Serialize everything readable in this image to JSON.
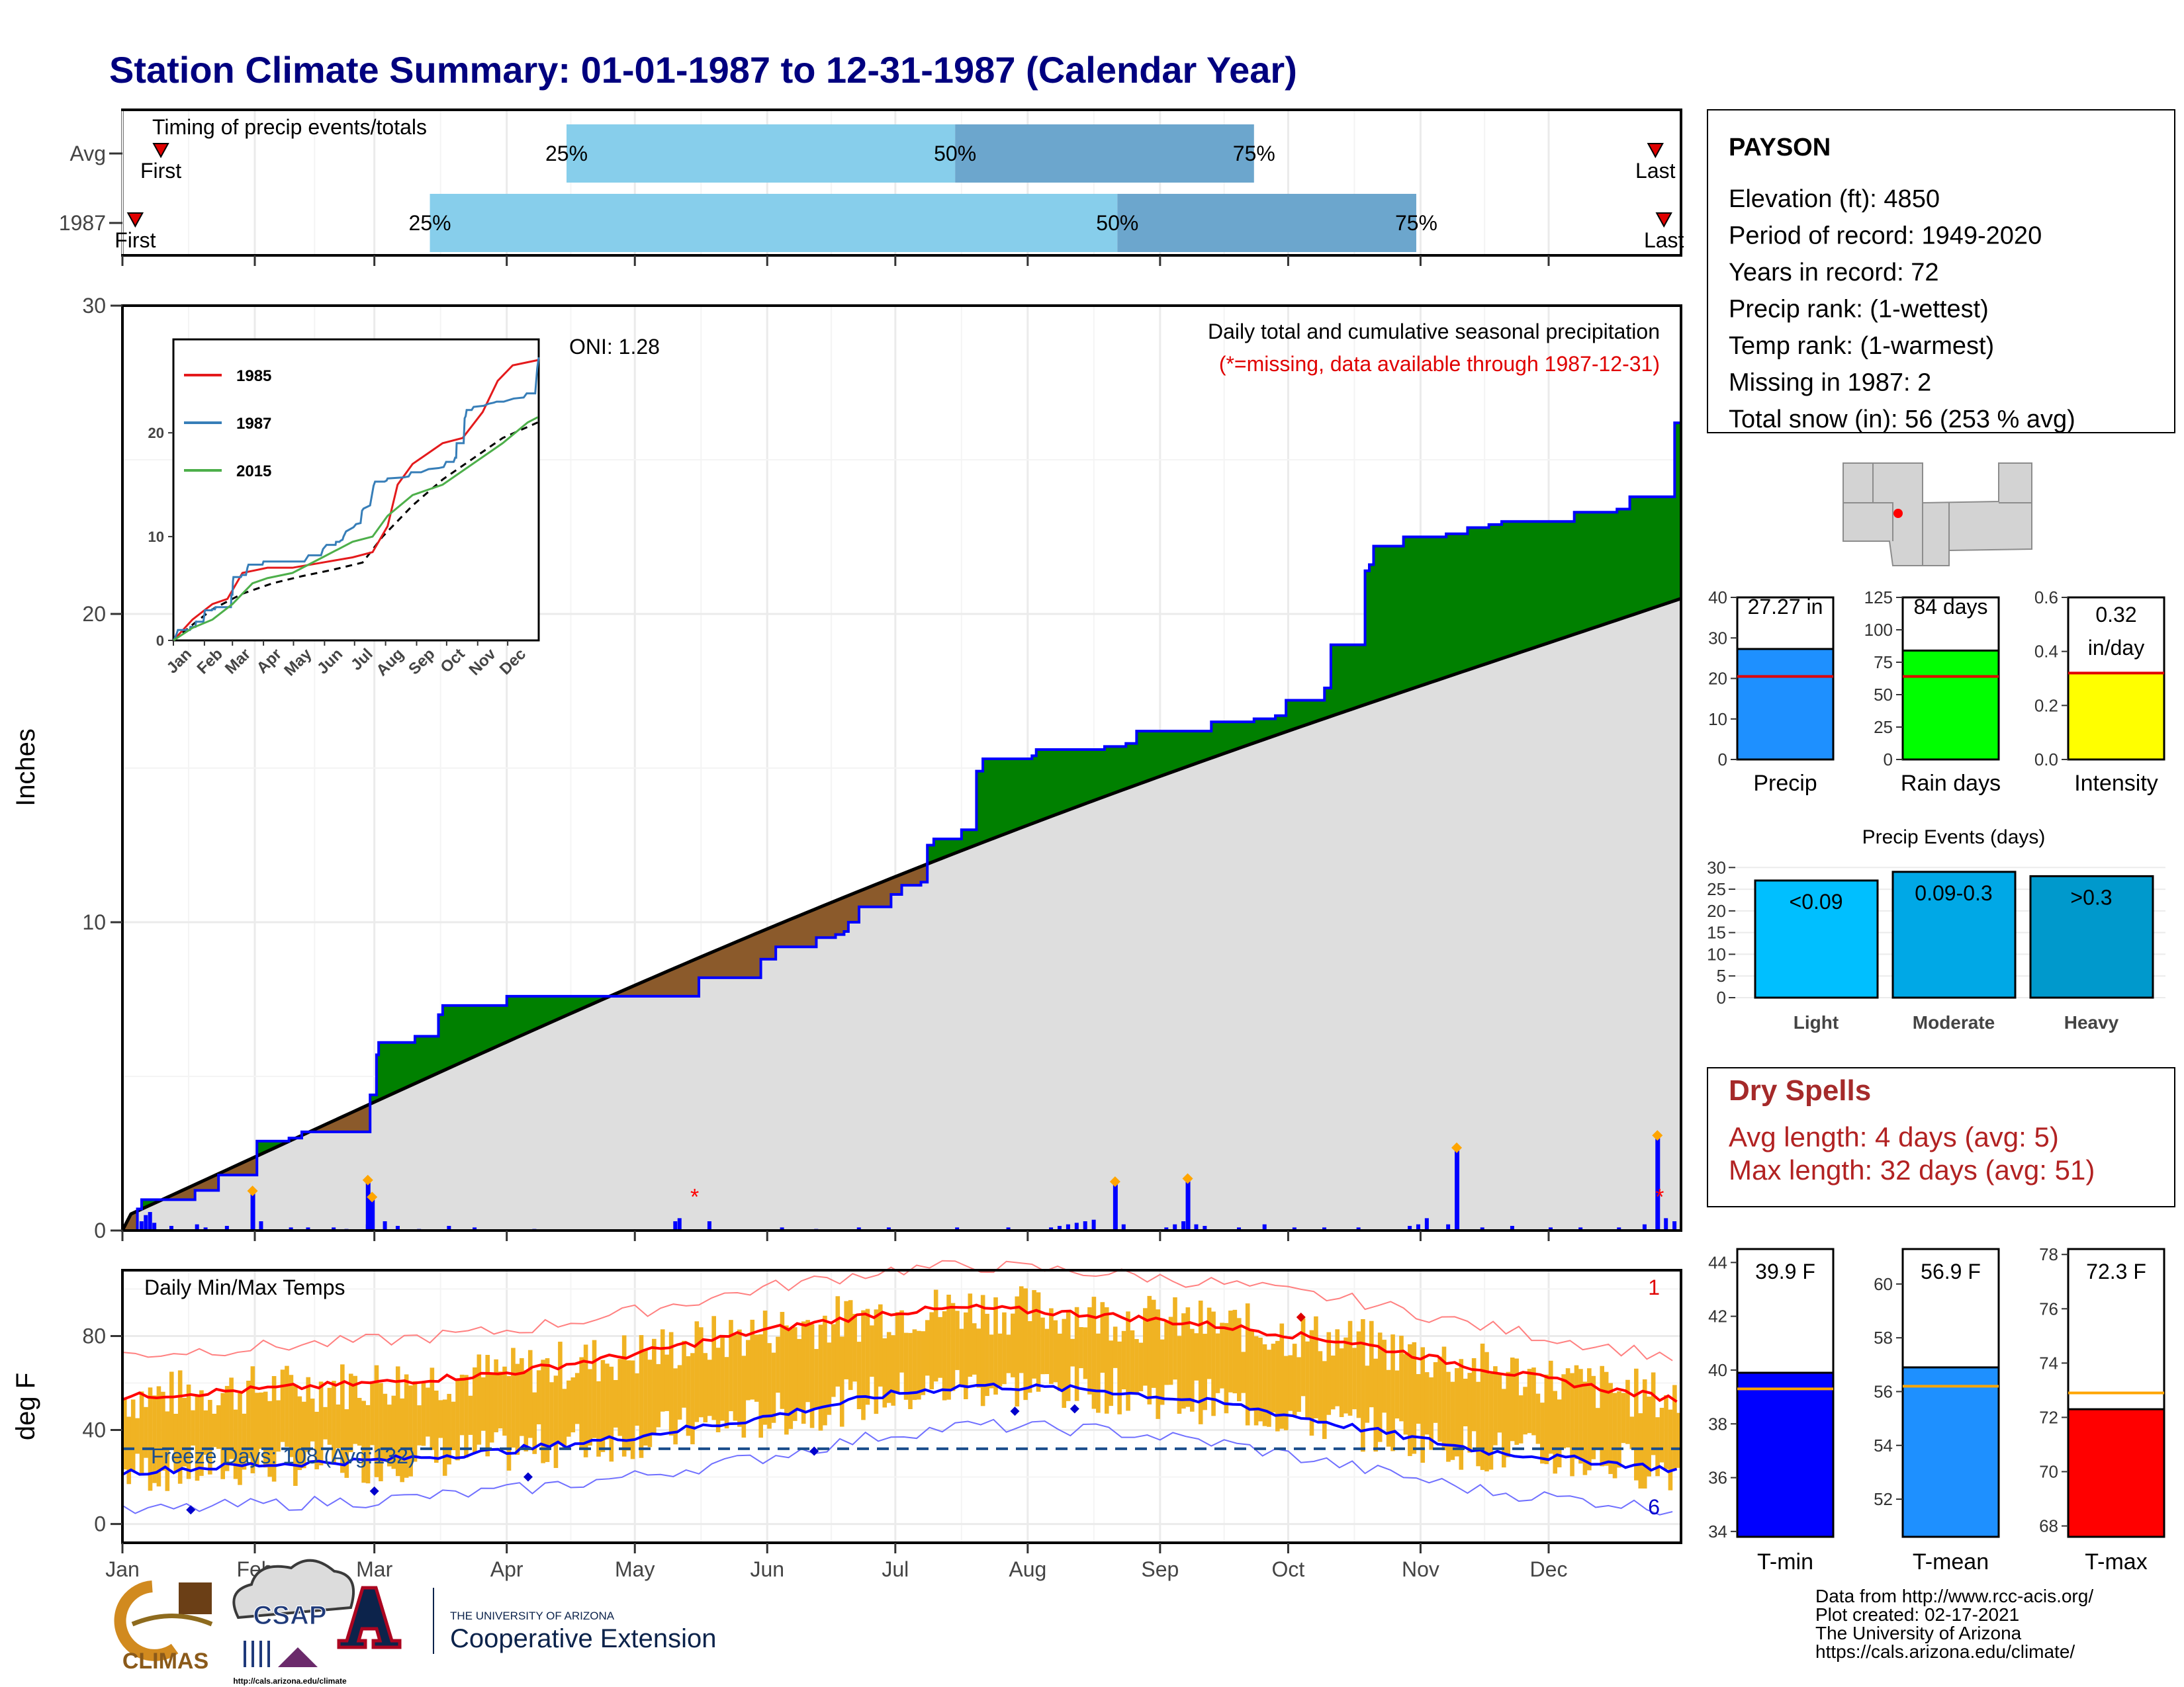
{
  "title": "Station Climate Summary: 01-01-1987 to 12-31-1987 (Calendar Year)",
  "timing": {
    "label": "Timing of precip events/totals",
    "rows": [
      {
        "label": "Avg",
        "first_label": "First",
        "last_label": "Last",
        "p25": "25%",
        "p50": "50%",
        "p75": "75%",
        "first_day": 10,
        "last_day": 360,
        "d25": 105,
        "d50": 196,
        "d75": 266
      },
      {
        "label": "1987",
        "first_label": "First",
        "last_label": "Last",
        "p25": "25%",
        "p50": "50%",
        "p75": "75%",
        "first_day": 4,
        "last_day": 362,
        "d25": 73,
        "d50": 234,
        "d75": 304
      }
    ]
  },
  "precip_panel": {
    "ylabel": "Inches",
    "yticks": [
      "0",
      "10",
      "20",
      "30"
    ],
    "title": "Daily total and cumulative seasonal precipitation",
    "subtitle": "(*=missing, data available through 1987-12-31)",
    "oni": "ONI: 1.28"
  },
  "inset": {
    "legend": [
      "1985",
      "1987",
      "2015"
    ],
    "legend_colors": [
      "#e41a1c",
      "#377eb8",
      "#4daf4a"
    ],
    "yticks": [
      "0",
      "10",
      "20"
    ],
    "xticks": [
      "Jan",
      "Feb",
      "Mar",
      "Apr",
      "May",
      "Jun",
      "Jul",
      "Aug",
      "Sep",
      "Oct",
      "Nov",
      "Dec"
    ]
  },
  "station": {
    "name": "PAYSON",
    "lines": [
      "Elevation (ft): 4850",
      "Period of record: 1949-2020",
      "Years in record: 72",
      "Precip rank:  (1-wettest)",
      "Temp rank:  (1-warmest)",
      "Missing in 1987: 2",
      "Total snow (in): 56 (253 % avg)"
    ]
  },
  "summary_bars": [
    {
      "label": "27.27 in",
      "xlabel": "Precip",
      "value": 27.27,
      "avg": 20.5,
      "ymax": 40,
      "yticks": [
        "0",
        "10",
        "20",
        "30",
        "40"
      ],
      "color": "#1e90ff"
    },
    {
      "label": "84 days",
      "xlabel": "Rain days",
      "value": 84,
      "avg": 64,
      "ymax": 125,
      "yticks": [
        "0",
        "25",
        "50",
        "75",
        "100",
        "125"
      ],
      "color": "#00ff00"
    },
    {
      "label": "0.32 in/day",
      "label1": "0.32",
      "label2": "in/day",
      "xlabel": "Intensity",
      "value": 0.32,
      "avg": 0.32,
      "ymax": 0.6,
      "yticks": [
        "0.0",
        "0.2",
        "0.4",
        "0.6"
      ],
      "color": "#ffff00"
    }
  ],
  "events": {
    "title": "Precip Events (days)",
    "yticks": [
      "0",
      "5",
      "10",
      "15",
      "20",
      "25",
      "30"
    ],
    "bars": [
      {
        "label": "<0.09",
        "xlabel": "Light",
        "value": 27,
        "color": "#00bfff"
      },
      {
        "label": "0.09-0.3",
        "xlabel": "Moderate",
        "value": 29,
        "color": "#00a8e6"
      },
      {
        "label": ">0.3",
        "xlabel": "Heavy",
        "value": 28,
        "color": "#0099cc"
      }
    ]
  },
  "dry_spells": {
    "title": "Dry Spells",
    "line1": "Avg length: 4 days (avg: 5)",
    "line2": "Max length: 32 days (avg: 51)"
  },
  "temp_panel": {
    "ylabel": "deg F",
    "title": "Daily Min/Max Temps",
    "freeze": "Freeze Days: 108 (Avg:132)",
    "count_top": "1",
    "count_bottom": "6",
    "yticks": [
      "0",
      "40",
      "80"
    ],
    "freeze_line": 32
  },
  "temp_bars": [
    {
      "label": "39.9 F",
      "xlabel": "T-min",
      "value": 39.9,
      "avg": 39.3,
      "ymin": 33.8,
      "ymax": 44.5,
      "yticks": [
        "34",
        "36",
        "38",
        "40",
        "42",
        "44"
      ],
      "color": "#0000ff"
    },
    {
      "label": "56.9 F",
      "xlabel": "T-mean",
      "value": 56.9,
      "avg": 56.2,
      "ymin": 50.6,
      "ymax": 61.3,
      "yticks": [
        "52",
        "54",
        "56",
        "58",
        "60"
      ],
      "color": "#1e90ff"
    },
    {
      "label": "72.3 F",
      "xlabel": "T-max",
      "value": 72.3,
      "avg": 72.9,
      "ymin": 67.6,
      "ymax": 78.2,
      "yticks": [
        "68",
        "70",
        "72",
        "74",
        "76",
        "78"
      ],
      "color": "#ff0000"
    }
  ],
  "months": [
    "Jan",
    "Feb",
    "Mar",
    "Apr",
    "May",
    "Jun",
    "Jul",
    "Aug",
    "Sep",
    "Oct",
    "Nov",
    "Dec"
  ],
  "logos": {
    "climas": "CLIMAS",
    "csap": "CSAP",
    "csap_url": "http://cals.arizona.edu/climate",
    "ua_small": "THE UNIVERSITY OF ARIZONA",
    "ua_big": "Cooperative Extension"
  },
  "credits": [
    "Data from http://www.rcc-acis.org/",
    "Plot created: 02-17-2021",
    "The University of Arizona",
    "https://cals.arizona.edu/climate/"
  ],
  "chart_data": {
    "type": "area",
    "title": "Daily total and cumulative seasonal precipitation",
    "ylabel": "Inches",
    "ylim": [
      0,
      30
    ],
    "x_label_units": "day of year",
    "cumulative_1987": [
      [
        1,
        0
      ],
      [
        7,
        0.7
      ],
      [
        9,
        1.0
      ],
      [
        33,
        1.0
      ],
      [
        34,
        1.3
      ],
      [
        44,
        1.3
      ],
      [
        45,
        1.8
      ],
      [
        60,
        1.8
      ],
      [
        63,
        2.9
      ],
      [
        77,
        2.9
      ],
      [
        78,
        3.0
      ],
      [
        83,
        3.0
      ],
      [
        84,
        3.2
      ],
      [
        102,
        3.2
      ],
      [
        115,
        3.2
      ],
      [
        116,
        4.4
      ],
      [
        118,
        4.4
      ],
      [
        119,
        5.7
      ],
      [
        120,
        6.1
      ],
      [
        135,
        6.1
      ],
      [
        137,
        6.3
      ],
      [
        145,
        6.3
      ],
      [
        148,
        7.0
      ],
      [
        150,
        7.3
      ],
      [
        178,
        7.3
      ],
      [
        180,
        7.6
      ],
      [
        262,
        7.6
      ],
      [
        270,
        8.2
      ],
      [
        295,
        8.2
      ],
      [
        299,
        8.8
      ],
      [
        306,
        9.2
      ],
      [
        324,
        9.2
      ],
      [
        325,
        9.5
      ],
      [
        332,
        9.5
      ],
      [
        334,
        9.6
      ],
      [
        338,
        9.7
      ],
      [
        340,
        10.0
      ],
      [
        345,
        10.5
      ],
      [
        360,
        10.9
      ],
      [
        365,
        11.2
      ],
      [
        374,
        11.3
      ],
      [
        377,
        12.5
      ],
      [
        380,
        12.7
      ],
      [
        393,
        13.0
      ],
      [
        400,
        14.9
      ],
      [
        403,
        15.3
      ],
      [
        411,
        15.3
      ],
      [
        422,
        15.3
      ],
      [
        426,
        15.4
      ],
      [
        428,
        15.6
      ],
      [
        460,
        15.7
      ],
      [
        470,
        15.8
      ],
      [
        475,
        16.2
      ],
      [
        495,
        16.2
      ],
      [
        510,
        16.5
      ],
      [
        530,
        16.6
      ],
      [
        540,
        16.7
      ],
      [
        545,
        17.2
      ],
      [
        560,
        17.2
      ],
      [
        563,
        17.6
      ],
      [
        565,
        17.6
      ],
      [
        566,
        19.0
      ],
      [
        580,
        19.0
      ],
      [
        582,
        21.4
      ],
      [
        584,
        21.6
      ],
      [
        586,
        22.2
      ],
      [
        596,
        22.2
      ],
      [
        600,
        22.5
      ],
      [
        620,
        22.6
      ],
      [
        630,
        22.8
      ],
      [
        640,
        22.9
      ],
      [
        646,
        23.0
      ],
      [
        660,
        23.0
      ],
      [
        680,
        23.3
      ],
      [
        700,
        23.4
      ],
      [
        706,
        23.8
      ],
      [
        723,
        23.8
      ],
      [
        727,
        26.2
      ],
      [
        730,
        27.27
      ]
    ],
    "x_scale_note": "x values here are half-day steps (0-730) over the year",
    "normal_end": 20.5,
    "daily_markers": [
      {
        "day": 31,
        "value": 1.2
      },
      {
        "day": 58,
        "value": 1.55
      },
      {
        "day": 59,
        "value": 1.0
      },
      {
        "day": 233,
        "value": 1.5
      },
      {
        "day": 250,
        "value": 1.6
      },
      {
        "day": 313,
        "value": 2.6
      },
      {
        "day": 360,
        "value": 3.0
      }
    ],
    "temps": {
      "ylim": [
        -8,
        108
      ],
      "avg_max": [
        [
          1,
          54
        ],
        [
          30,
          57
        ],
        [
          60,
          60
        ],
        [
          90,
          64
        ],
        [
          120,
          72
        ],
        [
          150,
          82
        ],
        [
          180,
          90
        ],
        [
          200,
          92
        ],
        [
          230,
          89
        ],
        [
          260,
          84
        ],
        [
          290,
          77
        ],
        [
          320,
          66
        ],
        [
          350,
          57
        ],
        [
          365,
          53
        ]
      ],
      "avg_min": [
        [
          1,
          22
        ],
        [
          30,
          25
        ],
        [
          60,
          27
        ],
        [
          90,
          31
        ],
        [
          120,
          37
        ],
        [
          150,
          45
        ],
        [
          180,
          55
        ],
        [
          200,
          59
        ],
        [
          230,
          57
        ],
        [
          260,
          51
        ],
        [
          290,
          41
        ],
        [
          320,
          31
        ],
        [
          350,
          26
        ],
        [
          365,
          23
        ]
      ]
    }
  }
}
